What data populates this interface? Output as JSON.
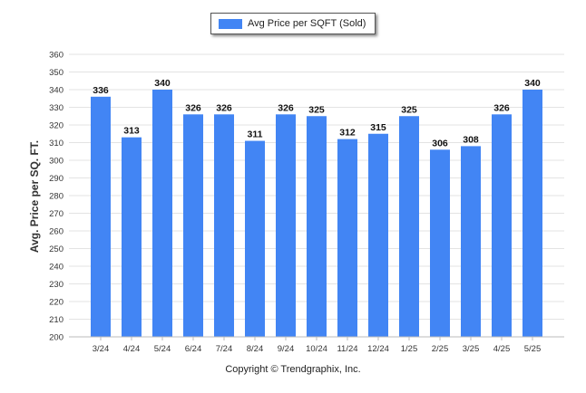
{
  "chart_data": {
    "type": "bar",
    "title": "",
    "legend": {
      "label": "Avg Price per SQFT (Sold)",
      "position": "top-center"
    },
    "categories": [
      "3/24",
      "4/24",
      "5/24",
      "6/24",
      "7/24",
      "8/24",
      "9/24",
      "10/24",
      "11/24",
      "12/24",
      "1/25",
      "2/25",
      "3/25",
      "4/25",
      "5/25"
    ],
    "values": [
      336,
      313,
      340,
      326,
      326,
      311,
      326,
      325,
      312,
      315,
      325,
      306,
      308,
      326,
      340
    ],
    "ylabel": "Avg. Price per SQ. FT.",
    "xlabel": "",
    "ylim": [
      200,
      360
    ],
    "yticks": [
      200,
      210,
      220,
      230,
      240,
      250,
      260,
      270,
      280,
      290,
      300,
      310,
      320,
      330,
      340,
      350,
      360
    ],
    "grid": true,
    "bar_color": "#4285f4"
  },
  "footer": {
    "copyright": "Copyright © Trendgraphix, Inc."
  }
}
